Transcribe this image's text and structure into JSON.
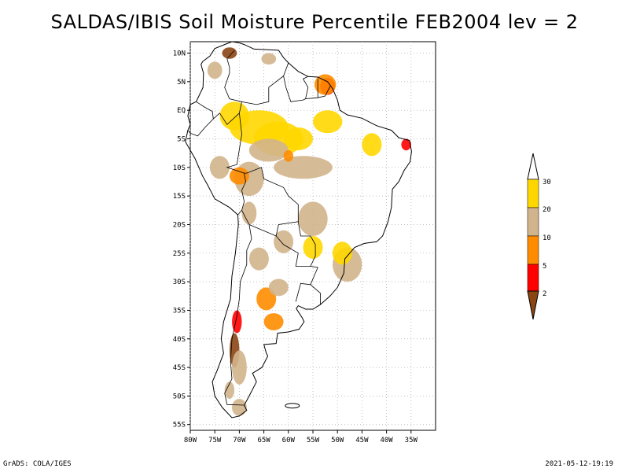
{
  "title": "SALDAS/IBIS Soil Moisture Percentile FEB2004 lev = 2",
  "map": {
    "lon_range": [
      -80,
      -30
    ],
    "lat_range": [
      -56,
      12
    ],
    "lat_ticks": [
      {
        "lat": 10,
        "label": "10N"
      },
      {
        "lat": 5,
        "label": "5N"
      },
      {
        "lat": 0,
        "label": "EQ"
      },
      {
        "lat": -5,
        "label": "5S"
      },
      {
        "lat": -10,
        "label": "10S"
      },
      {
        "lat": -15,
        "label": "15S"
      },
      {
        "lat": -20,
        "label": "20S"
      },
      {
        "lat": -25,
        "label": "25S"
      },
      {
        "lat": -30,
        "label": "30S"
      },
      {
        "lat": -35,
        "label": "35S"
      },
      {
        "lat": -40,
        "label": "40S"
      },
      {
        "lat": -45,
        "label": "45S"
      },
      {
        "lat": -50,
        "label": "50S"
      },
      {
        "lat": -55,
        "label": "55S"
      }
    ],
    "lon_ticks": [
      {
        "lon": -80,
        "label": "80W"
      },
      {
        "lon": -75,
        "label": "75W"
      },
      {
        "lon": -70,
        "label": "70W"
      },
      {
        "lon": -65,
        "label": "65W"
      },
      {
        "lon": -60,
        "label": "60W"
      },
      {
        "lon": -55,
        "label": "55W"
      },
      {
        "lon": -50,
        "label": "50W"
      },
      {
        "lon": -45,
        "label": "45W"
      },
      {
        "lon": -40,
        "label": "40W"
      },
      {
        "lon": -35,
        "label": "35W"
      }
    ]
  },
  "legend": {
    "breaks": [
      "2",
      "5",
      "10",
      "20",
      "30"
    ],
    "colors": [
      "#8B4513",
      "#FF0000",
      "#FF8C00",
      "#D2B48C",
      "#FFD700",
      "#FFFFFF"
    ]
  },
  "footer": {
    "left": "GrADS: COLA/IGES",
    "right": "2021-05-12-19:19"
  }
}
